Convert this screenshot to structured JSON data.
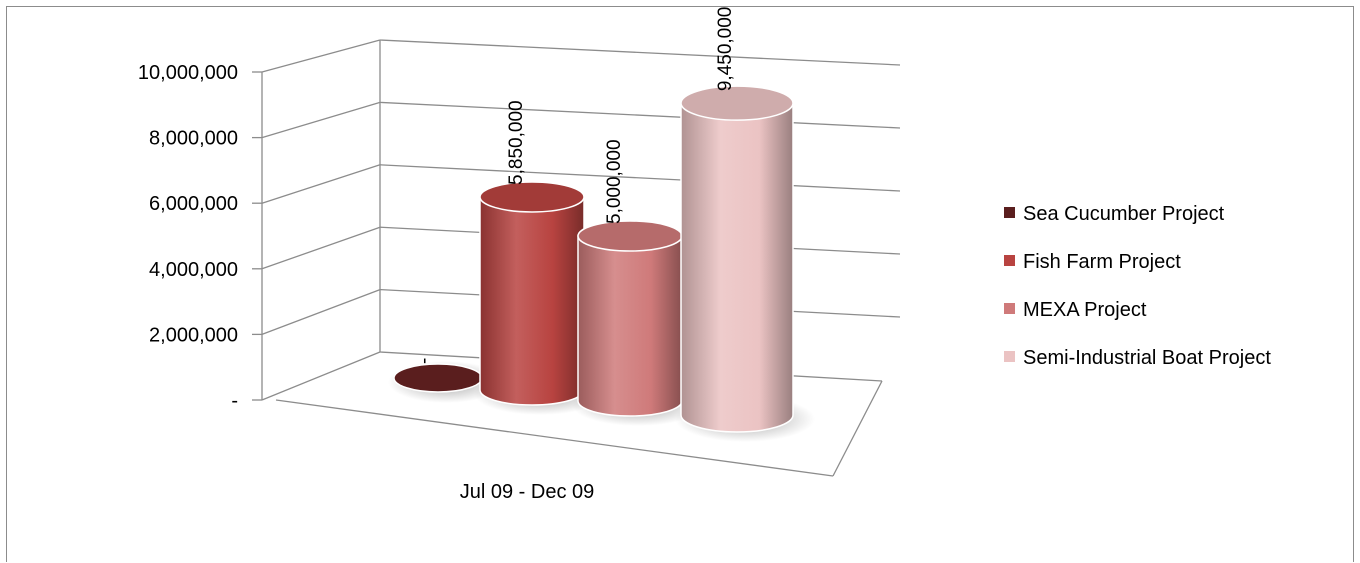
{
  "chart_data": {
    "type": "bar",
    "style": "3d-cylinder",
    "categories": [
      "Jul 09 - Dec 09"
    ],
    "series": [
      {
        "name": "Sea Cucumber Project",
        "values": [
          0
        ],
        "label": "-",
        "color": "#5a1e1e"
      },
      {
        "name": "Fish Farm Project",
        "values": [
          5850000
        ],
        "label": "5,850,000",
        "color": "#b84340"
      },
      {
        "name": "MEXA Project",
        "values": [
          5000000
        ],
        "label": "5,000,000",
        "color": "#cf7a7a"
      },
      {
        "name": "Semi-Industrial Boat Project",
        "values": [
          9450000
        ],
        "label": "9,450,000",
        "color": "#ebc3c3"
      }
    ],
    "yticks": [
      "-",
      "2,000,000",
      "4,000,000",
      "6,000,000",
      "8,000,000",
      "10,000,000"
    ],
    "ylim": [
      0,
      10000000
    ],
    "grid": true,
    "legend": "right"
  }
}
